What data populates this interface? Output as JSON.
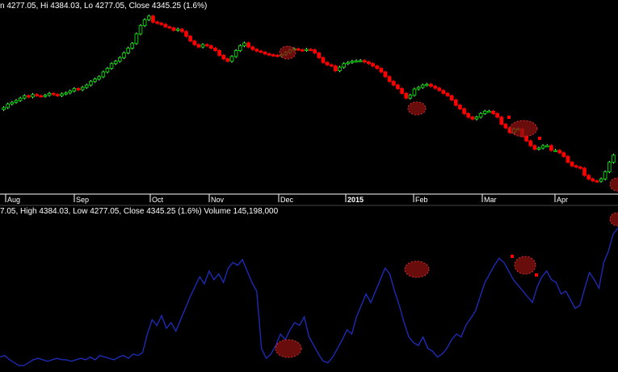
{
  "header": {
    "price_text": "n 4277.05, Hi 4384.03, Lo 4277.05, Close 4345.25 (1.6%)",
    "indicator_text": "7.05, High 4384.03, Low 4277.05, Close 4345.25 (1.6%) Volume 145,198,000"
  },
  "colors": {
    "background": "#000000",
    "up_candle": "#00cc00",
    "down_candle": "#ff0000",
    "indicator_line": "#1f2dbf",
    "highlight": "#8b1010"
  },
  "chart_data": [
    {
      "type": "candlestick",
      "x_tick_labels": [
        "Aug",
        "Sep",
        "Oct",
        "Nov",
        "Dec",
        "2015",
        "Feb",
        "Mar",
        "Apr"
      ],
      "bold_tick_labels": [
        "2015"
      ],
      "grid": false,
      "close_series": [
        3990,
        4005,
        4012,
        4020,
        4030,
        4040,
        4035,
        4045,
        4040,
        4038,
        4042,
        4050,
        4045,
        4040,
        4048,
        4052,
        4060,
        4070,
        4065,
        4075,
        4085,
        4100,
        4110,
        4120,
        4140,
        4155,
        4175,
        4185,
        4200,
        4220,
        4240,
        4260,
        4300,
        4335,
        4360,
        4375,
        4350,
        4345,
        4340,
        4330,
        4325,
        4315,
        4320,
        4310,
        4290,
        4270,
        4255,
        4245,
        4255,
        4250,
        4240,
        4230,
        4210,
        4195,
        4185,
        4205,
        4230,
        4250,
        4262,
        4245,
        4235,
        4228,
        4223,
        4216,
        4212,
        4210,
        4208,
        4213,
        4222,
        4232,
        4237,
        4233,
        4231,
        4235,
        4233,
        4220,
        4200,
        4180,
        4170,
        4165,
        4145,
        4160,
        4175,
        4180,
        4185,
        4187,
        4188,
        4182,
        4175,
        4165,
        4155,
        4140,
        4120,
        4100,
        4085,
        4070,
        4050,
        4030,
        4042,
        4068,
        4075,
        4085,
        4088,
        4080,
        4072,
        4062,
        4050,
        4040,
        4022,
        4000,
        3985,
        3965,
        3950,
        3942,
        3950,
        3965,
        3975,
        3975,
        3965,
        3950,
        3920,
        3905,
        3885,
        3900,
        3900,
        3870,
        3850,
        3830,
        3815,
        3820,
        3830,
        3830,
        3810,
        3810,
        3800,
        3785,
        3760,
        3745,
        3740,
        3735,
        3705,
        3690,
        3682,
        3680,
        3690,
        3720,
        3760,
        3790
      ]
    },
    {
      "type": "line",
      "volume_text": "145,198,000",
      "values": [
        6,
        7,
        4,
        2,
        0,
        0,
        2,
        4,
        5,
        4,
        3,
        4,
        5,
        4,
        4,
        3,
        4,
        5,
        4,
        6,
        4,
        7,
        6,
        5,
        4,
        6,
        7,
        5,
        8,
        7,
        9,
        22,
        32,
        28,
        35,
        26,
        30,
        24,
        32,
        40,
        48,
        55,
        62,
        57,
        66,
        60,
        64,
        58,
        68,
        72,
        70,
        74,
        66,
        58,
        52,
        12,
        5,
        8,
        14,
        22,
        18,
        25,
        30,
        28,
        34,
        20,
        14,
        8,
        3,
        2,
        6,
        12,
        18,
        25,
        22,
        34,
        42,
        50,
        44,
        52,
        60,
        68,
        64,
        52,
        42,
        30,
        20,
        16,
        14,
        20,
        12,
        10,
        6,
        8,
        12,
        18,
        22,
        20,
        28,
        33,
        38,
        48,
        58,
        64,
        70,
        75,
        72,
        66,
        60,
        56,
        52,
        48,
        44,
        55,
        62,
        66,
        60,
        58,
        50,
        52,
        46,
        40,
        42,
        54,
        65,
        60,
        54,
        72,
        80,
        92,
        96
      ]
    }
  ]
}
